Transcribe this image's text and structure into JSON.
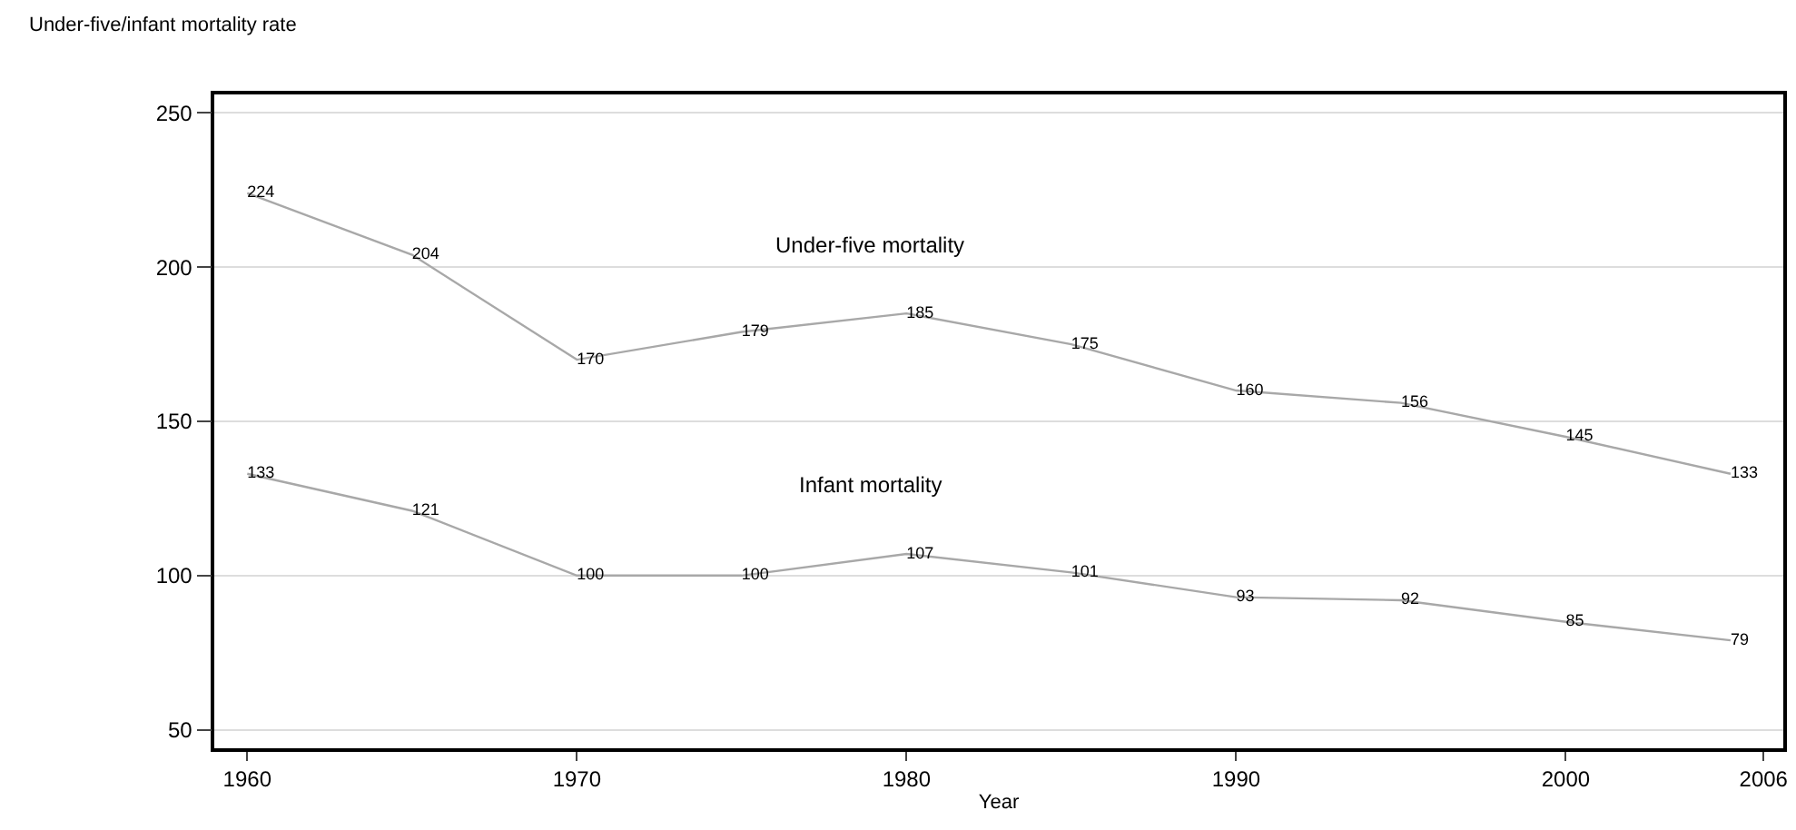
{
  "chart_data": {
    "type": "line",
    "ylabel": "Under-five/infant mortality rate",
    "xlabel": "Year",
    "x": [
      1960,
      1965,
      1970,
      1975,
      1980,
      1985,
      1990,
      1995,
      2000,
      2005
    ],
    "series": [
      {
        "name": "Under-five mortality",
        "color": "#a8a8a8",
        "values": [
          224,
          204,
          170,
          179,
          185,
          175,
          160,
          156,
          145,
          133
        ]
      },
      {
        "name": "Infant mortality",
        "color": "#a8a8a8",
        "values": [
          133,
          121,
          100,
          100,
          107,
          101,
          93,
          92,
          85,
          79
        ]
      }
    ],
    "data_labels": true,
    "xlim": [
      1959,
      2006.6
    ],
    "ylim": [
      44,
      256
    ],
    "xticks": [
      1960,
      1970,
      1980,
      1990,
      2000,
      2006
    ],
    "yticks": [
      50,
      100,
      150,
      200,
      250
    ],
    "grid": "y",
    "legend": false,
    "marker": "none",
    "line_style": "solid"
  }
}
